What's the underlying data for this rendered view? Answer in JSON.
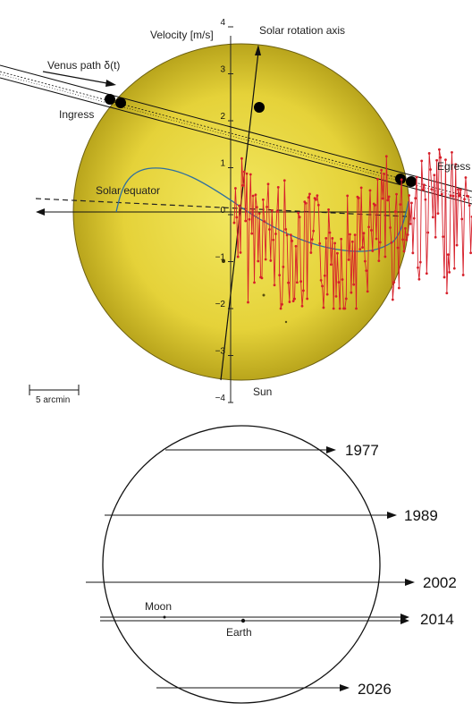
{
  "top_panel": {
    "labels": {
      "velocity_axis": "Velocity [m/s]",
      "rotation_axis": "Solar rotation axis",
      "venus_path": "Venus path δ(t)",
      "ingress": "Ingress",
      "egress": "Egress",
      "solar_equator": "Solar equator",
      "sun": "Sun",
      "scale_bar": "5 arcmin"
    },
    "velocity_ticks": [
      "4",
      "3",
      "2",
      "1",
      "0",
      "−1",
      "−2",
      "−3",
      "−4"
    ],
    "colors": {
      "sun_fill": "#e6d53a",
      "rv_series": "#d61f2a",
      "model_curve": "#2f6f9f"
    }
  },
  "bottom_panel": {
    "transits": [
      "1977",
      "1989",
      "2002",
      "2014",
      "2026"
    ],
    "labels": {
      "moon": "Moon",
      "earth": "Earth"
    }
  }
}
